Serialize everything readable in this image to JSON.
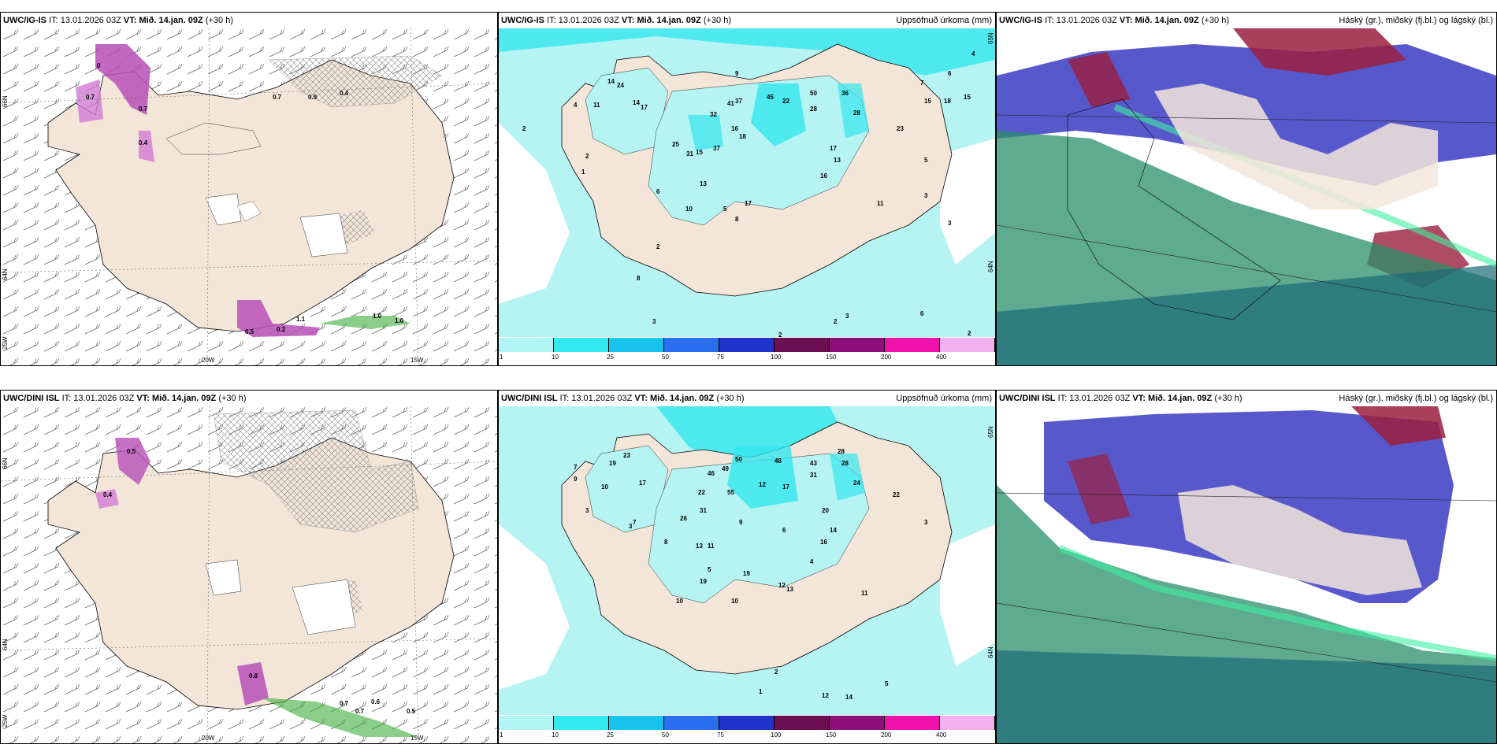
{
  "panels": {
    "top_left": {
      "model": "UWC/IG-IS",
      "it_label": "IT:",
      "it_value": "13.01.2026 03Z",
      "vt_label": "VT:",
      "vt_value": "Mið. 14.jan. 09Z",
      "lead": "(+30 h)",
      "lat_labels": [
        "66N",
        "64N",
        "25W"
      ],
      "lon_labels": [
        "20W",
        "15W"
      ],
      "snow_values": [
        "0",
        "0.7",
        "0.7",
        "0.4",
        "0.4",
        "0.9",
        "1.0",
        "0.5",
        "0.2",
        "1.1",
        "1.0",
        "0.7"
      ]
    },
    "top_mid": {
      "model": "UWC/IG-IS",
      "it_label": "IT:",
      "it_value": "13.01.2026 03Z",
      "vt_label": "VT:",
      "vt_value": "Mið. 14.jan. 09Z",
      "lead": "(+30 h)",
      "right_title": "Uppsöfnuð úrkoma (mm)",
      "lat_labels": [
        "65N",
        "64N"
      ],
      "precip_values": [
        "9",
        "4",
        "6",
        "7",
        "14",
        "24",
        "11",
        "14",
        "17",
        "37",
        "45",
        "22",
        "50",
        "36",
        "28",
        "28",
        "23",
        "15",
        "18",
        "15",
        "41",
        "32",
        "16",
        "18",
        "17",
        "13",
        "15",
        "13",
        "31",
        "37",
        "25",
        "17",
        "16",
        "11",
        "10",
        "8",
        "5",
        "3",
        "2",
        "1",
        "2",
        "6",
        "4",
        "3",
        "8",
        "2",
        "2",
        "3",
        "2",
        "2",
        "18",
        "11",
        "3",
        "5",
        "6"
      ]
    },
    "top_right": {
      "model": "UWC/IG-IS",
      "it_label": "IT:",
      "it_value": "13.01.2026 03Z",
      "vt_label": "VT:",
      "vt_value": "Mið. 14.jan. 09Z",
      "lead": "(+30 h)",
      "right_title": "Háský (gr.), miðský (fj.bl.) og lágský (bl.)"
    },
    "bottom_left": {
      "model": "UWC/DINI ISL",
      "it_label": "IT:",
      "it_value": "13.01.2026 03Z",
      "vt_label": "VT:",
      "vt_value": "Mið. 14.jan. 09Z",
      "lead": "(+30 h)",
      "lat_labels": [
        "66N",
        "64N",
        "25W"
      ],
      "lon_labels": [
        "20W",
        "15W"
      ],
      "snow_values": [
        "0.4",
        "0.7",
        "0.7",
        "0.6",
        "0.5",
        "0.8",
        "0.5"
      ]
    },
    "bottom_mid": {
      "model": "UWC/DINI ISL",
      "it_label": "IT:",
      "it_value": "13.01.2026 03Z",
      "vt_label": "VT:",
      "vt_value": "Mið. 14.jan. 09Z",
      "lead": "(+30 h)",
      "right_title": "Uppsöfnuð úrkoma (mm)",
      "lat_labels": [
        "65N",
        "64N"
      ],
      "precip_values": [
        "10",
        "19",
        "7",
        "9",
        "23",
        "17",
        "46",
        "49",
        "50",
        "48",
        "43",
        "28",
        "28",
        "24",
        "22",
        "31",
        "55",
        "22",
        "12",
        "17",
        "26",
        "31",
        "13",
        "11",
        "20",
        "14",
        "16",
        "19",
        "19",
        "12",
        "13",
        "10",
        "10",
        "9",
        "8",
        "7",
        "6",
        "5",
        "4",
        "3",
        "3",
        "3",
        "2",
        "1",
        "12",
        "14",
        "5",
        "11"
      ]
    },
    "bottom_right": {
      "model": "UWC/DINI ISL",
      "it_label": "IT:",
      "it_value": "13.01.2026 03Z",
      "vt_label": "VT:",
      "vt_value": "Mið. 14.jan. 09Z",
      "lead": "(+30 h)",
      "right_title": "Háský (gr.), miðský (fj.bl.) og lágský (bl.)"
    }
  },
  "legend": {
    "ticks": [
      "1",
      "10",
      "25",
      "50",
      "75",
      "100",
      "150",
      "200",
      "400"
    ],
    "colors": [
      "#b3f5f5",
      "#33e8ee",
      "#18c4ee",
      "#2a6ff0",
      "#1f33c8",
      "#6b0f52",
      "#8d0f7a",
      "#f012aa",
      "#f2b0ef"
    ]
  },
  "colors": {
    "land": "#f3e6d9",
    "sea": "#ffffff",
    "precip_light": "#b6f4f4",
    "precip_mid": "#33e6ee",
    "snow_purple": "#b64fb6",
    "hatch": "#999999",
    "cloud_high": "#2a8f6a",
    "cloud_mid": "#4646c8",
    "cloud_low": "#9b1f3f"
  }
}
